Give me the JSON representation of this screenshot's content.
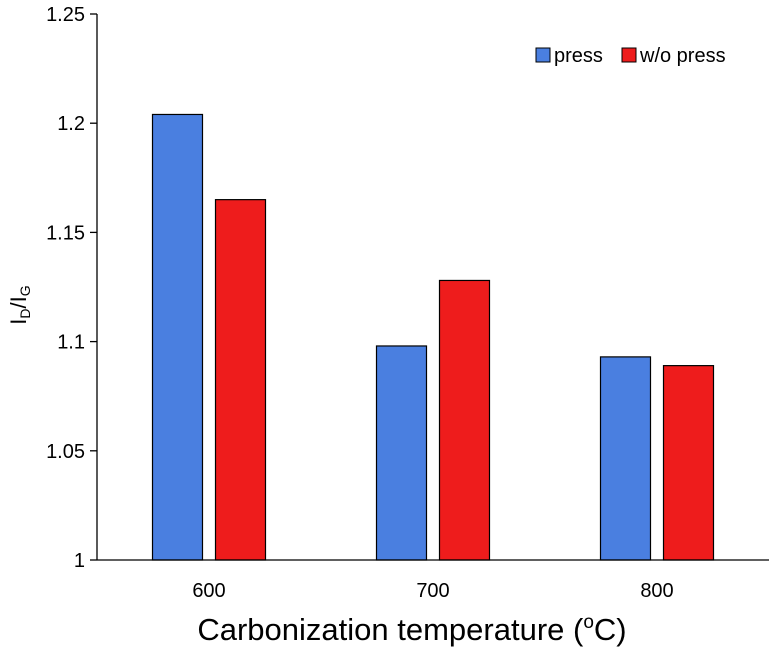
{
  "chart_data": {
    "type": "bar",
    "title": "",
    "xlabel": {
      "main": "Carbonization temperature (",
      "sup": "o",
      "unit": "C)"
    },
    "ylabel": {
      "main": "I",
      "sub1": "D",
      "slash": "/I",
      "sub2": "G"
    },
    "categories": [
      "600",
      "700",
      "800"
    ],
    "series": [
      {
        "name": "press",
        "color": "#4a7fe0",
        "values": [
          1.204,
          1.098,
          1.093
        ]
      },
      {
        "name": "w/o press",
        "color": "#ee1c1c",
        "values": [
          1.165,
          1.128,
          1.089
        ]
      }
    ],
    "ylim": [
      1,
      1.25
    ],
    "yticks": [
      1,
      1.05,
      1.1,
      1.15,
      1.2,
      1.25
    ],
    "ytick_labels": [
      "1",
      "1.05",
      "1.1",
      "1.15",
      "1.2",
      "1.25"
    ],
    "grid": false,
    "legend_position": "top-right"
  }
}
